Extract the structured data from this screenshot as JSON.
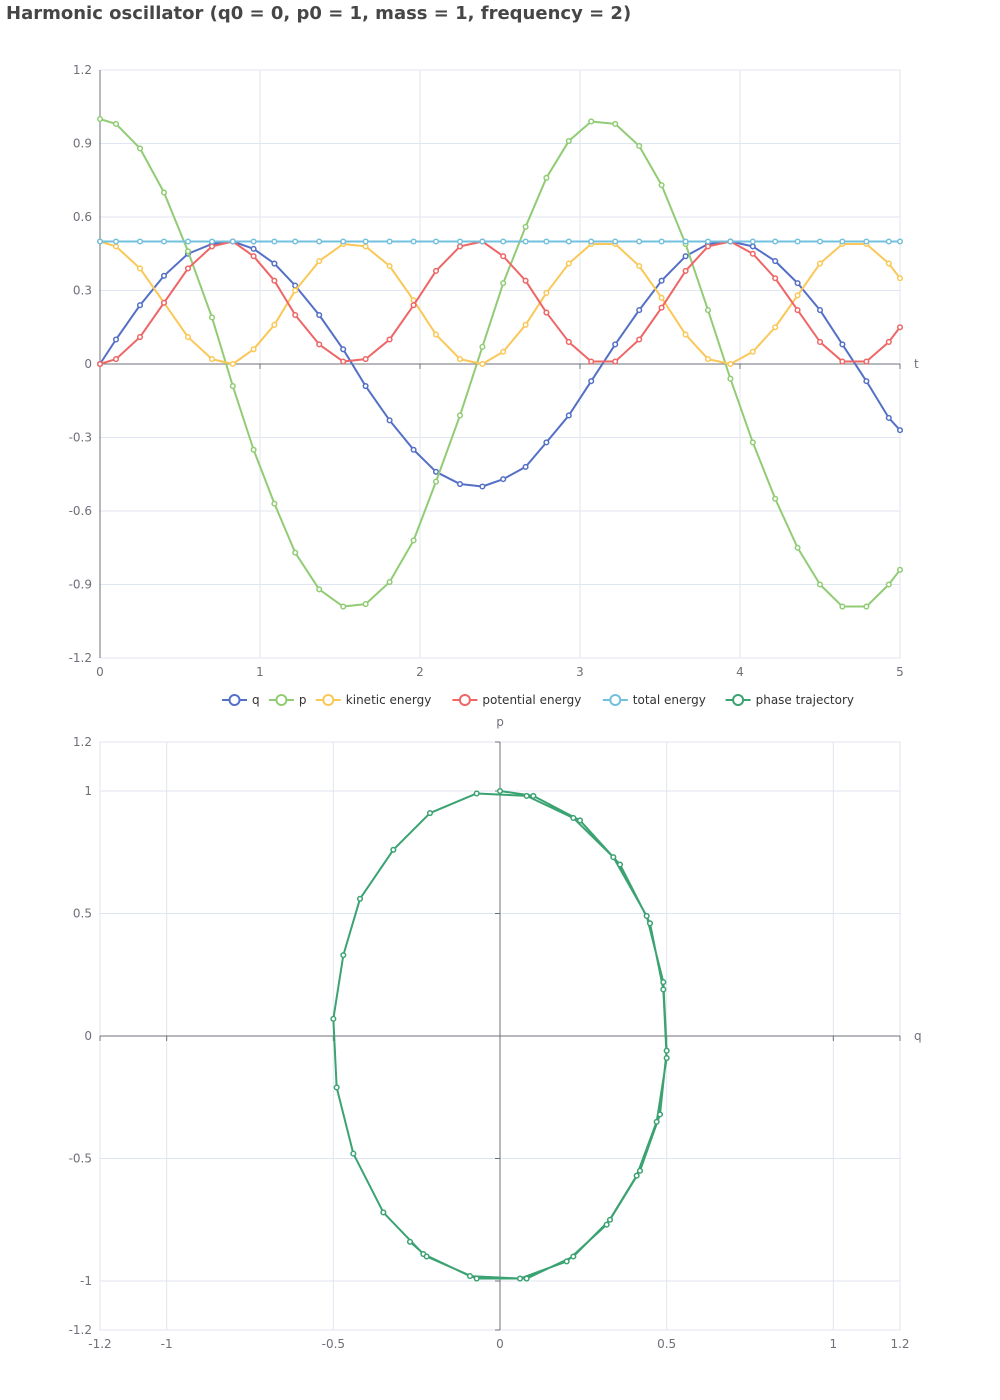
{
  "title": "Harmonic oscillator (q0 = 0, p0 = 1, mass = 1, frequency = 2)",
  "colors": {
    "q": "#5470c6",
    "p": "#91cc75",
    "kinetic": "#fac858",
    "potential": "#ee6666",
    "total": "#73c0de",
    "phase": "#3ba272",
    "axis": "#6e7079",
    "grid": "#e0e6f1",
    "label": "#6e7079"
  },
  "chart_data": [
    {
      "type": "line",
      "xlabel": "t",
      "ylabel": "",
      "xlim": [
        0,
        5
      ],
      "ylim": [
        -1.2,
        1.2
      ],
      "xticks": [
        "0",
        "1",
        "2",
        "3",
        "4",
        "5"
      ],
      "yticks": [
        "1.2",
        "0.9",
        "0.6",
        "0.3",
        "0",
        "-0.3",
        "-0.6",
        "-0.9",
        "-1.2"
      ],
      "grid": true,
      "legend": "bottom-center",
      "x": [
        0,
        0.1,
        0.25,
        0.4,
        0.55,
        0.7,
        0.83,
        0.96,
        1.09,
        1.22,
        1.37,
        1.52,
        1.66,
        1.81,
        1.96,
        2.1,
        2.25,
        2.39,
        2.52,
        2.66,
        2.79,
        2.93,
        3.07,
        3.22,
        3.37,
        3.51,
        3.66,
        3.8,
        3.94,
        4.08,
        4.22,
        4.36,
        4.5,
        4.64,
        4.79,
        4.93,
        5.0
      ],
      "series": [
        {
          "name": "q",
          "color_key": "q",
          "values": [
            0,
            0.1,
            0.24,
            0.36,
            0.45,
            0.49,
            0.5,
            0.47,
            0.41,
            0.32,
            0.2,
            0.06,
            -0.09,
            -0.23,
            -0.35,
            -0.44,
            -0.49,
            -0.5,
            -0.47,
            -0.42,
            -0.32,
            -0.21,
            -0.07,
            0.08,
            0.22,
            0.34,
            0.44,
            0.49,
            0.5,
            0.48,
            0.42,
            0.33,
            0.22,
            0.08,
            -0.07,
            -0.22,
            -0.27
          ]
        },
        {
          "name": "p",
          "color_key": "p",
          "values": [
            1,
            0.98,
            0.88,
            0.7,
            0.46,
            0.19,
            -0.09,
            -0.35,
            -0.57,
            -0.77,
            -0.92,
            -0.99,
            -0.98,
            -0.89,
            -0.72,
            -0.48,
            -0.21,
            0.07,
            0.33,
            0.56,
            0.76,
            0.91,
            0.99,
            0.98,
            0.89,
            0.73,
            0.49,
            0.22,
            -0.06,
            -0.32,
            -0.55,
            -0.75,
            -0.9,
            -0.99,
            -0.99,
            -0.9,
            -0.84
          ]
        },
        {
          "name": "kinetic energy",
          "color_key": "kinetic",
          "values": [
            0.5,
            0.48,
            0.39,
            0.25,
            0.11,
            0.02,
            0.0,
            0.06,
            0.16,
            0.3,
            0.42,
            0.49,
            0.48,
            0.4,
            0.26,
            0.12,
            0.02,
            0.0,
            0.05,
            0.16,
            0.29,
            0.41,
            0.49,
            0.49,
            0.4,
            0.27,
            0.12,
            0.02,
            0.0,
            0.05,
            0.15,
            0.28,
            0.41,
            0.49,
            0.49,
            0.41,
            0.35
          ]
        },
        {
          "name": "potential energy",
          "color_key": "potential",
          "values": [
            0,
            0.02,
            0.11,
            0.25,
            0.39,
            0.48,
            0.5,
            0.44,
            0.34,
            0.2,
            0.08,
            0.01,
            0.02,
            0.1,
            0.24,
            0.38,
            0.48,
            0.5,
            0.44,
            0.34,
            0.21,
            0.09,
            0.01,
            0.01,
            0.1,
            0.23,
            0.38,
            0.48,
            0.5,
            0.45,
            0.35,
            0.22,
            0.09,
            0.01,
            0.01,
            0.09,
            0.15
          ]
        },
        {
          "name": "total energy",
          "color_key": "total",
          "values": [
            0.5,
            0.5,
            0.5,
            0.5,
            0.5,
            0.5,
            0.5,
            0.5,
            0.5,
            0.5,
            0.5,
            0.5,
            0.5,
            0.5,
            0.5,
            0.5,
            0.5,
            0.5,
            0.5,
            0.5,
            0.5,
            0.5,
            0.5,
            0.5,
            0.5,
            0.5,
            0.5,
            0.5,
            0.5,
            0.5,
            0.5,
            0.5,
            0.5,
            0.5,
            0.5,
            0.5,
            0.5
          ]
        }
      ]
    },
    {
      "type": "scatter",
      "xlabel": "q",
      "ylabel": "p",
      "xlim": [
        -1.2,
        1.2
      ],
      "ylim": [
        -1.2,
        1.2
      ],
      "xticks": [
        "-1.2",
        "-1",
        "-0.5",
        "0",
        "0.5",
        "1",
        "1.2"
      ],
      "yticks": [
        "1.2",
        "1",
        "0.5",
        "0",
        "-0.5",
        "-1",
        "-1.2"
      ],
      "grid": true,
      "series": [
        {
          "name": "phase trajectory",
          "color_key": "phase",
          "points": [
            [
              0,
              1
            ],
            [
              0.1,
              0.98
            ],
            [
              0.24,
              0.88
            ],
            [
              0.36,
              0.7
            ],
            [
              0.45,
              0.46
            ],
            [
              0.49,
              0.19
            ],
            [
              0.5,
              -0.09
            ],
            [
              0.47,
              -0.35
            ],
            [
              0.41,
              -0.57
            ],
            [
              0.32,
              -0.77
            ],
            [
              0.2,
              -0.92
            ],
            [
              0.06,
              -0.99
            ],
            [
              -0.09,
              -0.98
            ],
            [
              -0.23,
              -0.89
            ],
            [
              -0.35,
              -0.72
            ],
            [
              -0.44,
              -0.48
            ],
            [
              -0.49,
              -0.21
            ],
            [
              -0.5,
              0.07
            ],
            [
              -0.47,
              0.33
            ],
            [
              -0.42,
              0.56
            ],
            [
              -0.32,
              0.76
            ],
            [
              -0.21,
              0.91
            ],
            [
              -0.07,
              0.99
            ],
            [
              0.08,
              0.98
            ],
            [
              0.22,
              0.89
            ],
            [
              0.34,
              0.73
            ],
            [
              0.44,
              0.49
            ],
            [
              0.49,
              0.22
            ],
            [
              0.5,
              -0.06
            ],
            [
              0.48,
              -0.32
            ],
            [
              0.42,
              -0.55
            ],
            [
              0.33,
              -0.75
            ],
            [
              0.22,
              -0.9
            ],
            [
              0.08,
              -0.99
            ],
            [
              -0.07,
              -0.99
            ],
            [
              -0.22,
              -0.9
            ],
            [
              -0.27,
              -0.84
            ]
          ]
        }
      ]
    }
  ]
}
